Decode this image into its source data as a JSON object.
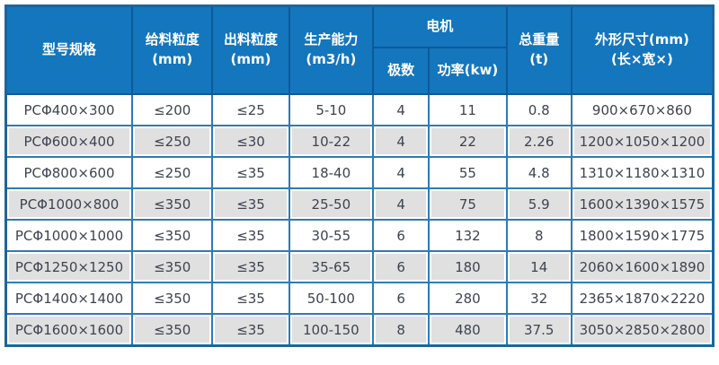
{
  "colors": {
    "header_bg": "#1476bd",
    "header_text": "#ffffff",
    "header_border": "#0d5a98",
    "outer_border": "#1b669f",
    "cell_border": "#2e7bb4",
    "row_bg": "#ffffff",
    "row_alt_bg": "#e0e0e0",
    "body_text": "#3d4450"
  },
  "table": {
    "headers": {
      "model": "型号规格",
      "feed": {
        "line1": "给料粒度",
        "line2": "(mm)"
      },
      "discharge": {
        "line1": "出料粒度",
        "line2": "(mm)"
      },
      "capacity": {
        "line1": "生产能力",
        "line2": "(m3/h)"
      },
      "motor": "电机",
      "poles": "极数",
      "power": "功率(kw)",
      "weight": {
        "line1": "总重量",
        "line2": "(t)"
      },
      "dimensions": {
        "line1": "外形尺寸(mm)",
        "line2": "(长×宽×)"
      }
    },
    "rows": [
      [
        "PCΦ400×300",
        "≤200",
        "≤25",
        "5-10",
        "4",
        "11",
        "0.8",
        "900×670×860"
      ],
      [
        "PCΦ600×400",
        "≤250",
        "≤30",
        "10-22",
        "4",
        "22",
        "2.26",
        "1200×1050×1200"
      ],
      [
        "PCΦ800×600",
        "≤250",
        "≤35",
        "18-40",
        "4",
        "55",
        "4.8",
        "1310×1180×1310"
      ],
      [
        "PCΦ1000×800",
        "≤350",
        "≤35",
        "25-50",
        "4",
        "75",
        "5.9",
        "1600×1390×1575"
      ],
      [
        "PCΦ1000×1000",
        "≤350",
        "≤35",
        "30-55",
        "6",
        "132",
        "8",
        "1800×1590×1775"
      ],
      [
        "PCΦ1250×1250",
        "≤350",
        "≤35",
        "35-65",
        "6",
        "180",
        "14",
        "2060×1600×1890"
      ],
      [
        "PCΦ1400×1400",
        "≤350",
        "≤35",
        "50-100",
        "6",
        "280",
        "32",
        "2365×1870×2220"
      ],
      [
        "PCΦ1600×1600",
        "≤350",
        "≤35",
        "100-150",
        "8",
        "480",
        "37.5",
        "3050×2850×2800"
      ]
    ]
  }
}
